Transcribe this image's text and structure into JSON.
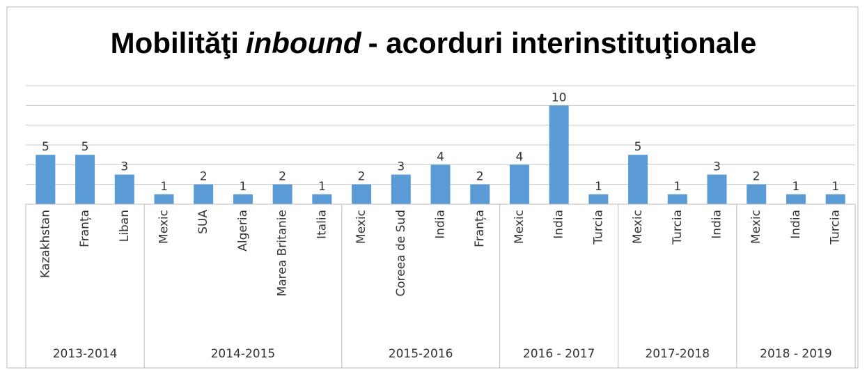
{
  "chart_data": {
    "type": "bar",
    "title_parts": [
      "Mobilităţi",
      "inbound",
      "- acorduri interinstituţionale"
    ],
    "groups": [
      {
        "label": "2013-2014",
        "categories": [
          "Kazakhstan",
          "Franța",
          "Liban"
        ]
      },
      {
        "label": "2014-2015",
        "categories": [
          "Mexic",
          "SUA",
          "Algeria",
          "Marea Britanie",
          "Italia"
        ]
      },
      {
        "label": "2015-2016",
        "categories": [
          "Mexic",
          "Coreea de Sud",
          "India",
          "Franța"
        ]
      },
      {
        "label": "2016 - 2017",
        "categories": [
          "Mexic",
          "India",
          "Turcia"
        ]
      },
      {
        "label": "2017-2018",
        "categories": [
          "Mexic",
          "Turcia",
          "India"
        ]
      },
      {
        "label": "2018 - 2019",
        "categories": [
          "Mexic",
          "India",
          "Turcia"
        ]
      }
    ],
    "values": [
      5,
      5,
      3,
      1,
      2,
      1,
      2,
      1,
      2,
      3,
      4,
      2,
      4,
      10,
      1,
      5,
      1,
      3,
      2,
      1,
      1
    ],
    "color": "#5b9bd5",
    "ylim": [
      0,
      12
    ],
    "yticks": [
      0,
      2,
      4,
      6,
      8,
      10,
      12
    ],
    "grid": true
  }
}
